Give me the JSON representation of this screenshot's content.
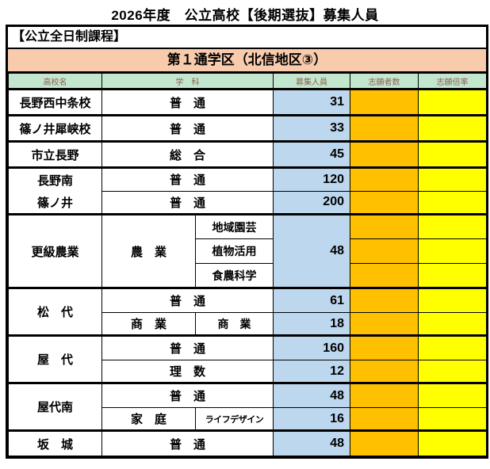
{
  "title": "2026年度　公立高校【後期選抜】募集人員",
  "course_label": "【公立全日制課程】",
  "district_label": "第１通学区（北信地区③）",
  "colors": {
    "district_peach": "#f8cbad",
    "header_green": "#c3e6cf",
    "header_text_brown": "#8d5f4d",
    "capacity_blue": "#bdd7ee",
    "applicants_orange": "#ffc000",
    "ratio_yellow": "#ffff00"
  },
  "table": {
    "headers": {
      "school": "高校名",
      "dept": "学　科",
      "capacity": "募集人員",
      "applicants": "志願者数",
      "ratio": "志願倍率"
    },
    "rows": {
      "r1": {
        "school": "長野西中条校",
        "dept": "普　通",
        "num": "31"
      },
      "r2": {
        "school": "篠ノ井犀峡校",
        "dept": "普　通",
        "num": "33"
      },
      "r3": {
        "school": "市立長野",
        "dept": "総　合",
        "num": "45"
      },
      "r4": {
        "school": "長野南",
        "dept": "普　通",
        "num": "120"
      },
      "r5": {
        "school": "篠ノ井",
        "dept": "普　通",
        "num": "200"
      },
      "r6": {
        "school": "更級農業",
        "dept": "農　業",
        "sub1": "地域園芸",
        "sub2": "植物活用",
        "sub3": "食農科学",
        "num": "48"
      },
      "r7": {
        "school": "松　代",
        "dept_a": "普　通",
        "num_a": "61",
        "dept_b": "商　業",
        "sub_b": "商　業",
        "num_b": "18"
      },
      "r8": {
        "school": "屋　代",
        "dept_a": "普　通",
        "num_a": "160",
        "dept_b": "理　数",
        "num_b": "12"
      },
      "r9": {
        "school": "屋代南",
        "dept_a": "普　通",
        "num_a": "48",
        "dept_b": "家　庭",
        "sub_b": "ライフデザイン",
        "num_b": "16"
      },
      "r10": {
        "school": "坂　城",
        "dept": "普　通",
        "num": "48"
      }
    }
  }
}
